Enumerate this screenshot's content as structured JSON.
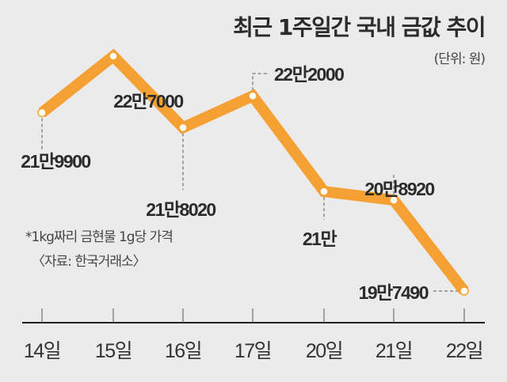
{
  "chart_data": {
    "type": "line",
    "title": "최근 1주일간 국내 금값 추이",
    "unit": "(단위: 원)",
    "categories": [
      "14일",
      "15일",
      "16일",
      "17일",
      "20일",
      "21일",
      "22일"
    ],
    "values": [
      219900,
      227000,
      218020,
      222000,
      210000,
      208920,
      197490
    ],
    "data_labels": [
      "21만9900",
      "22만7000",
      "21만8020",
      "22만2000",
      "21만",
      "20만8920",
      "19만7490"
    ],
    "notes": [
      "*1kg짜리 금현물 1g당 가격",
      "〈자료: 한국거래소〉"
    ],
    "xlabel": "",
    "ylabel": "",
    "grid": false,
    "line_color": "#f5a032"
  }
}
